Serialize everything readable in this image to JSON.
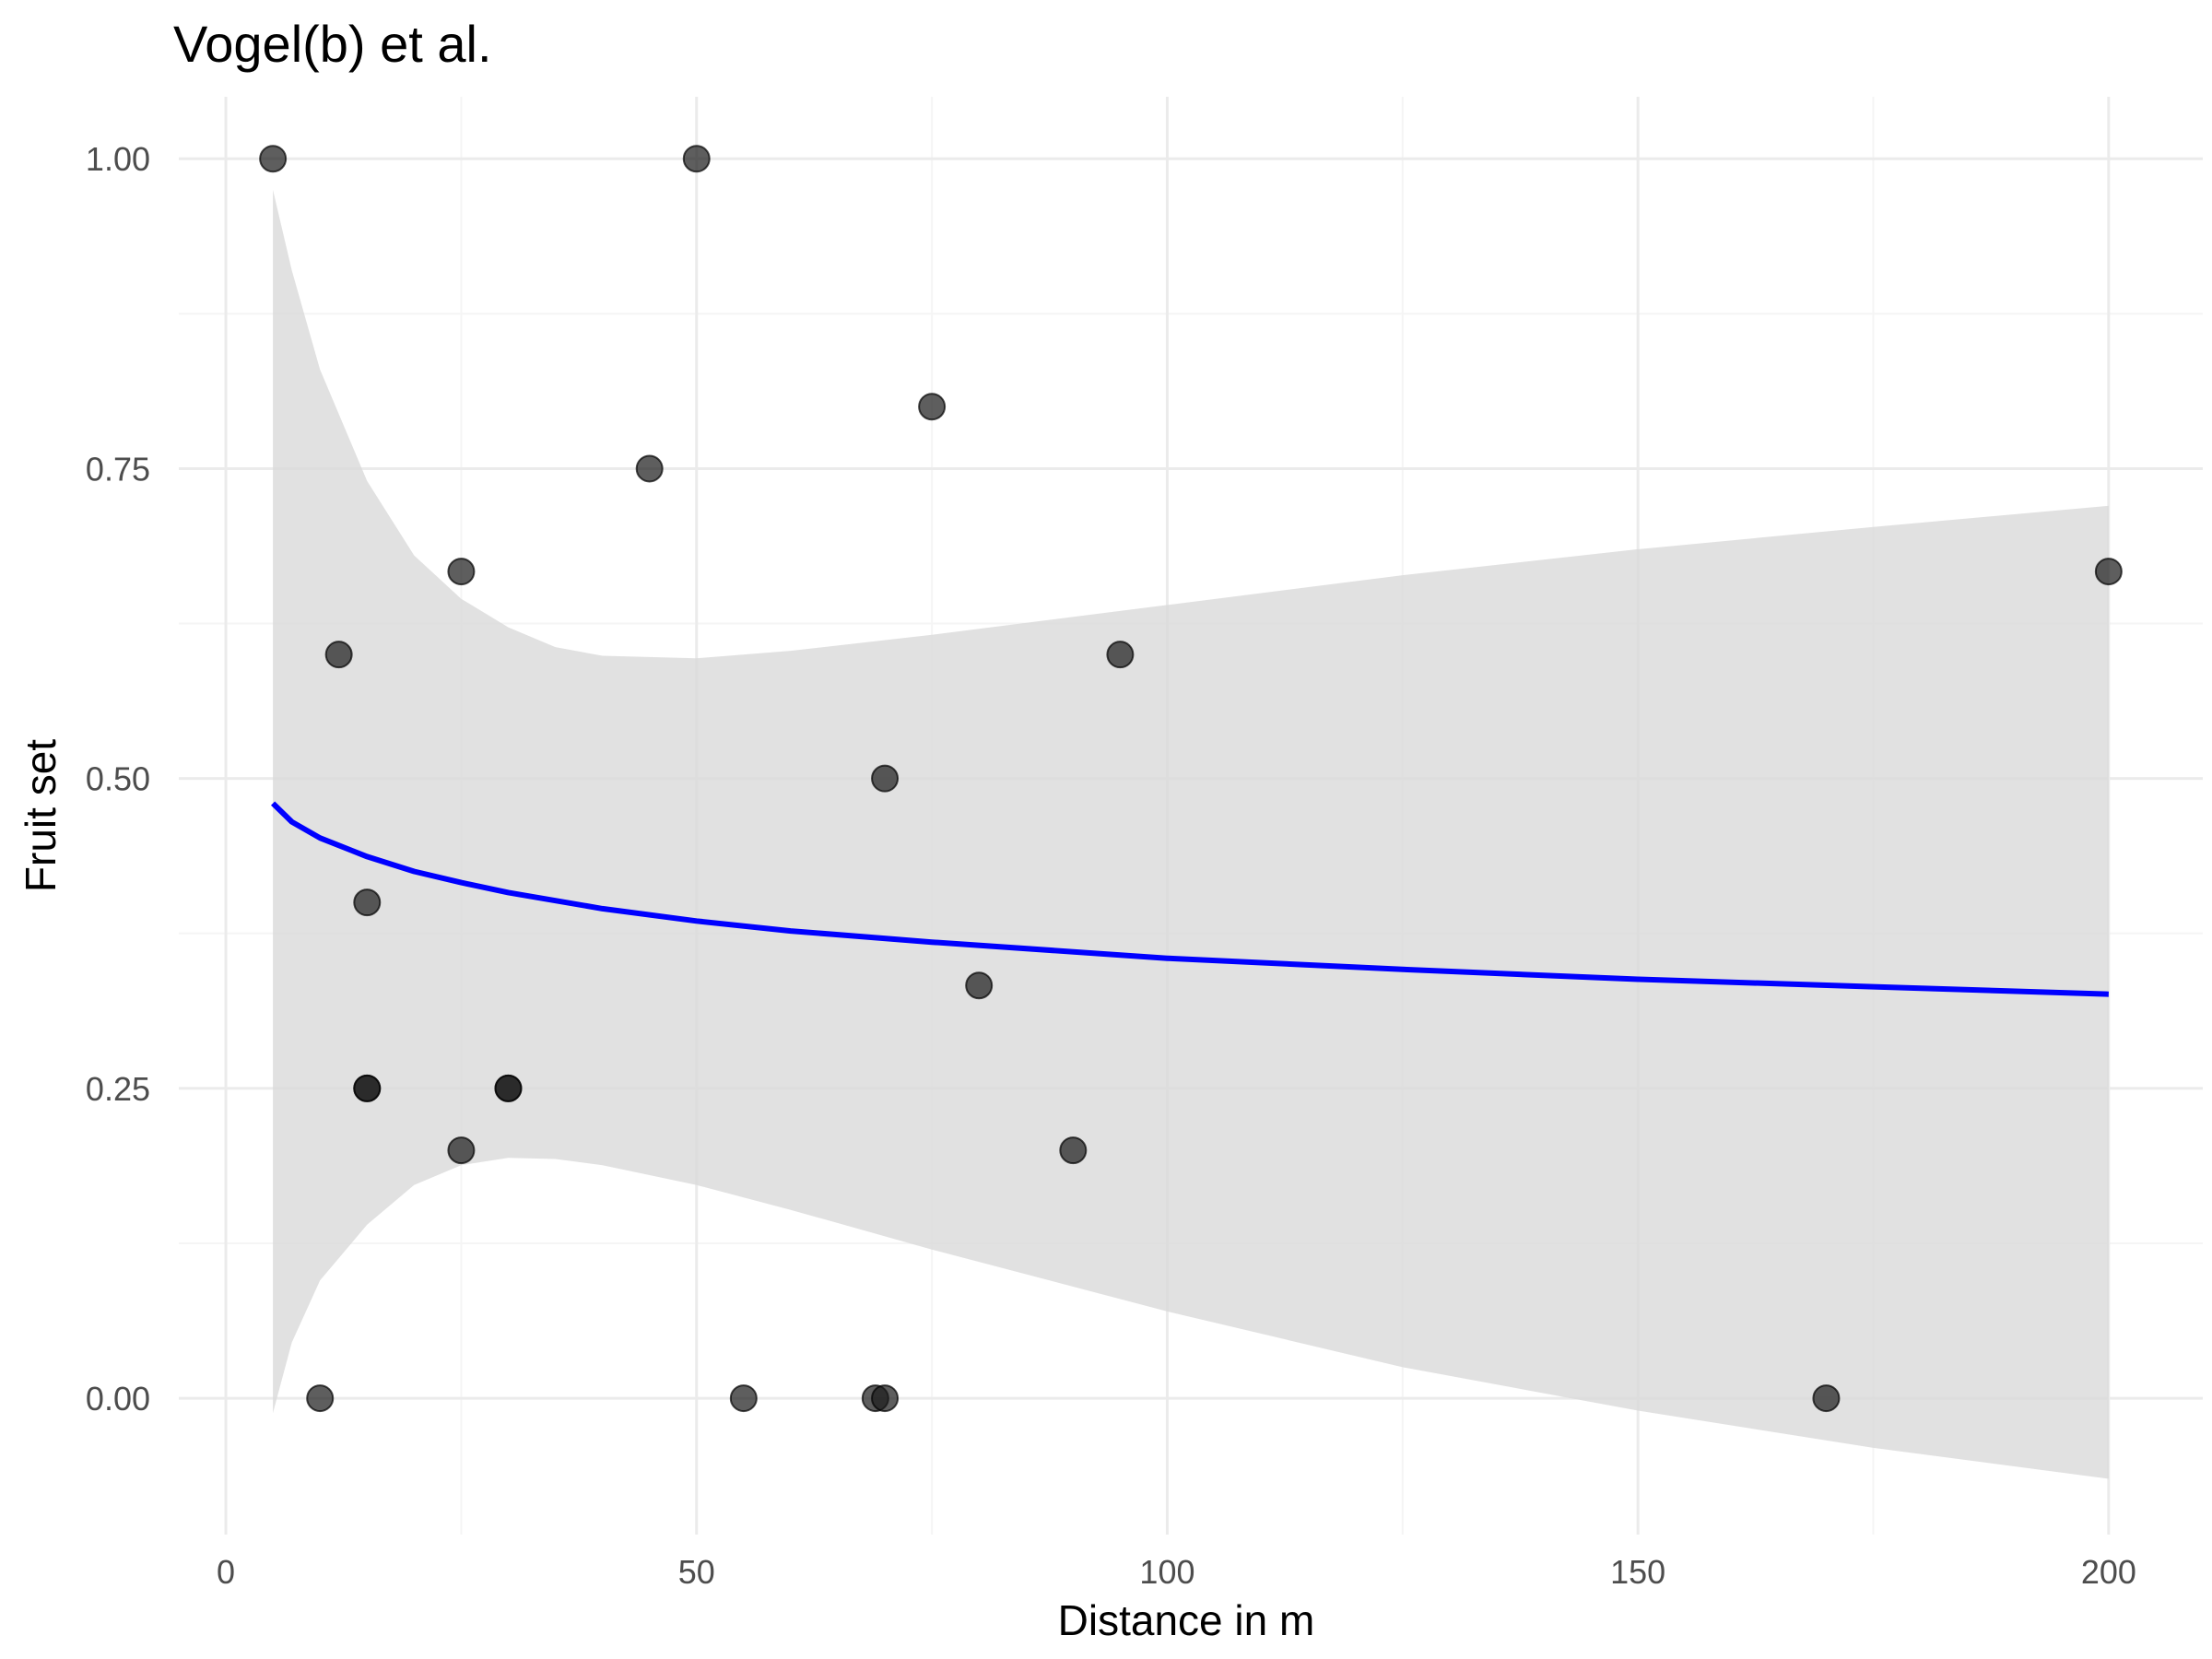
{
  "chart_data": {
    "type": "scatter",
    "title": "Vogel(b) et al.",
    "xlabel": "Distance in m",
    "ylabel": "Fruit set",
    "xlim": [
      -5,
      210
    ],
    "ylim": [
      -0.11,
      1.05
    ],
    "x_ticks": [
      0,
      50,
      100,
      150,
      200
    ],
    "x_tick_labels": [
      "0",
      "50",
      "100",
      "150",
      "200"
    ],
    "x_minor_ticks": [
      25,
      75,
      125,
      175
    ],
    "y_ticks": [
      0,
      0.25,
      0.5,
      0.75,
      1.0
    ],
    "y_tick_labels": [
      "0.00",
      "0.25",
      "0.50",
      "0.75",
      "1.00"
    ],
    "y_minor_ticks": [
      0.125,
      0.375,
      0.625,
      0.875
    ],
    "grid": true,
    "legend": "none",
    "colors": {
      "points": "#1a1a1a",
      "fit_line": "#0000ff",
      "ribbon": "#d9d9d9",
      "grid_major": "#ebebeb",
      "grid_minor": "#f5f5f5"
    },
    "points": [
      {
        "x": 5,
        "y": 1.0
      },
      {
        "x": 10,
        "y": 0.0
      },
      {
        "x": 12,
        "y": 0.6
      },
      {
        "x": 15,
        "y": 0.4
      },
      {
        "x": 15,
        "y": 0.25
      },
      {
        "x": 15,
        "y": 0.25
      },
      {
        "x": 25,
        "y": 0.667
      },
      {
        "x": 25,
        "y": 0.2
      },
      {
        "x": 30,
        "y": 0.25
      },
      {
        "x": 30,
        "y": 0.25
      },
      {
        "x": 45,
        "y": 0.75
      },
      {
        "x": 50,
        "y": 1.0
      },
      {
        "x": 55,
        "y": 0.0
      },
      {
        "x": 69,
        "y": 0.0
      },
      {
        "x": 70,
        "y": 0.0
      },
      {
        "x": 70,
        "y": 0.5
      },
      {
        "x": 75,
        "y": 0.8
      },
      {
        "x": 80,
        "y": 0.333
      },
      {
        "x": 90,
        "y": 0.2
      },
      {
        "x": 95,
        "y": 0.6
      },
      {
        "x": 170,
        "y": 0.0
      },
      {
        "x": 200,
        "y": 0.667
      }
    ],
    "fit": [
      {
        "x": 5,
        "y": 0.48
      },
      {
        "x": 7,
        "y": 0.465
      },
      {
        "x": 10,
        "y": 0.452
      },
      {
        "x": 15,
        "y": 0.437
      },
      {
        "x": 20,
        "y": 0.425
      },
      {
        "x": 25,
        "y": 0.416
      },
      {
        "x": 30,
        "y": 0.408
      },
      {
        "x": 40,
        "y": 0.395
      },
      {
        "x": 50,
        "y": 0.385
      },
      {
        "x": 60,
        "y": 0.377
      },
      {
        "x": 75,
        "y": 0.368
      },
      {
        "x": 100,
        "y": 0.355
      },
      {
        "x": 125,
        "y": 0.346
      },
      {
        "x": 150,
        "y": 0.338
      },
      {
        "x": 175,
        "y": 0.332
      },
      {
        "x": 200,
        "y": 0.326
      }
    ],
    "ribbon_upper": [
      {
        "x": 5,
        "y": 0.975
      },
      {
        "x": 7,
        "y": 0.91
      },
      {
        "x": 10,
        "y": 0.83
      },
      {
        "x": 15,
        "y": 0.74
      },
      {
        "x": 20,
        "y": 0.68
      },
      {
        "x": 25,
        "y": 0.645
      },
      {
        "x": 30,
        "y": 0.622
      },
      {
        "x": 35,
        "y": 0.606
      },
      {
        "x": 40,
        "y": 0.599
      },
      {
        "x": 50,
        "y": 0.597
      },
      {
        "x": 60,
        "y": 0.603
      },
      {
        "x": 75,
        "y": 0.616
      },
      {
        "x": 100,
        "y": 0.64
      },
      {
        "x": 125,
        "y": 0.664
      },
      {
        "x": 150,
        "y": 0.685
      },
      {
        "x": 175,
        "y": 0.703
      },
      {
        "x": 200,
        "y": 0.72
      }
    ],
    "ribbon_lower": [
      {
        "x": 5,
        "y": -0.012
      },
      {
        "x": 7,
        "y": 0.045
      },
      {
        "x": 10,
        "y": 0.095
      },
      {
        "x": 15,
        "y": 0.14
      },
      {
        "x": 20,
        "y": 0.172
      },
      {
        "x": 25,
        "y": 0.188
      },
      {
        "x": 30,
        "y": 0.194
      },
      {
        "x": 35,
        "y": 0.193
      },
      {
        "x": 40,
        "y": 0.188
      },
      {
        "x": 50,
        "y": 0.172
      },
      {
        "x": 60,
        "y": 0.152
      },
      {
        "x": 75,
        "y": 0.12
      },
      {
        "x": 100,
        "y": 0.07
      },
      {
        "x": 125,
        "y": 0.025
      },
      {
        "x": 150,
        "y": -0.01
      },
      {
        "x": 175,
        "y": -0.04
      },
      {
        "x": 200,
        "y": -0.065
      }
    ]
  }
}
